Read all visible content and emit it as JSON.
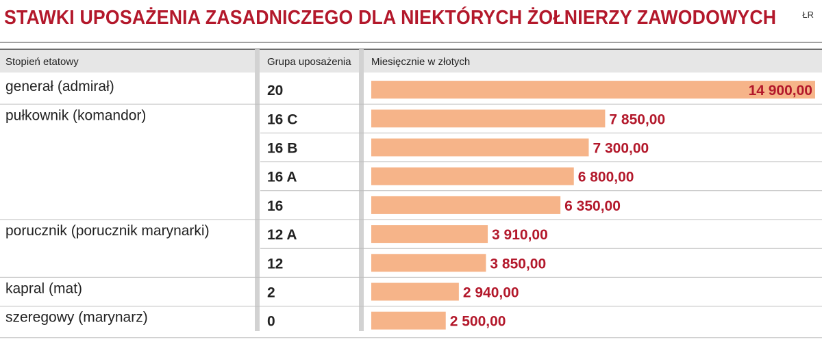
{
  "title": "STAWKI UPOSAŻENIA ZASADNICZEGO DLA NIEKTÓRYCH ŻOŁNIERZY ZAWODOWYCH",
  "source": "ŁR",
  "headers": {
    "rank": "Stopień etatowy",
    "group": "Grupa uposażenia",
    "value": "Miesięcznie w złotych"
  },
  "colors": {
    "title": "#b3182b",
    "bar": "#f6b489",
    "value_text": "#b3182b",
    "header_bg": "#e6e6e6",
    "separator": "#bdbdbd"
  },
  "chart_data": {
    "type": "bar",
    "orientation": "horizontal",
    "value_unit": "zł",
    "xlim": [
      0,
      14900
    ],
    "rows": [
      {
        "rank": "generał (admirał)",
        "group": "20",
        "value": 14900,
        "label": "14 900,00"
      },
      {
        "rank": "pułkownik (komandor)",
        "group": "16 C",
        "value": 7850,
        "label": "7 850,00"
      },
      {
        "rank": "",
        "group": "16 B",
        "value": 7300,
        "label": "7 300,00"
      },
      {
        "rank": "",
        "group": "16 A",
        "value": 6800,
        "label": "6 800,00"
      },
      {
        "rank": "",
        "group": "16",
        "value": 6350,
        "label": "6 350,00"
      },
      {
        "rank": "porucznik (porucznik marynarki)",
        "group": "12 A",
        "value": 3910,
        "label": "3 910,00"
      },
      {
        "rank": "",
        "group": "12",
        "value": 3850,
        "label": "3 850,00"
      },
      {
        "rank": "kapral (mat)",
        "group": "2",
        "value": 2940,
        "label": "2 940,00"
      },
      {
        "rank": "szeregowy (marynarz)",
        "group": "0",
        "value": 2500,
        "label": "2 500,00"
      }
    ]
  }
}
